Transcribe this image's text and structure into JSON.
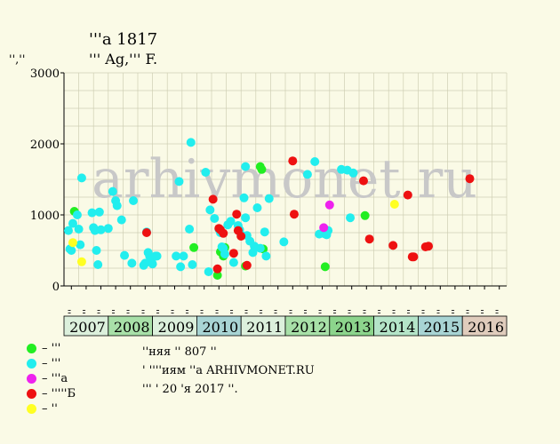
{
  "header": {
    "title": "ꞌꞌꞌa 1817",
    "subtitle": "ꞌꞌꞌ Ag,ꞌꞌꞌ F.",
    "y_unit": "ꞌꞌ,ꞌꞌ"
  },
  "legend": [
    {
      "label": "– ꞌꞌꞌ",
      "color": "#22ee22"
    },
    {
      "label": "– ꞌꞌꞌ",
      "color": "#22eeee"
    },
    {
      "label": "– ꞌꞌꞌa",
      "color": "#ee22ee"
    },
    {
      "label": "– ꞌꞌꞌꞌꞌБ",
      "color": "#ee1111"
    },
    {
      "label": "– ꞌꞌ",
      "color": "#ffff22"
    }
  ],
  "notes": [
    "ꞌꞌняя ꞌꞌ 807 ꞌꞌ",
    "ꞌ ꞌꞌꞌꞌиям ꞌꞌa ARHIVMONET.RU",
    "ꞌꞌꞌ ꞌ 20 ꞌя 2017 ꞌꞌ."
  ],
  "watermark": "arhivmonet.ru",
  "chart_data": {
    "type": "scatter",
    "ylim": [
      0,
      3000
    ],
    "y_ticks": [
      0,
      1000,
      2000,
      3000
    ],
    "x_tick_labels": [
      "ꞌꞌ",
      "ꞌꞌ",
      "ꞌꞌ",
      "ꞌꞌ",
      "ꞌꞌ",
      "ꞌꞌ",
      "ꞌꞌ",
      "ꞌꞌ",
      "ꞌꞌ",
      "ꞌꞌ",
      "ꞌꞌ",
      "ꞌꞌ",
      "ꞌꞌ",
      "ꞌꞌ",
      "ꞌꞌ",
      "ꞌꞌ",
      "ꞌꞌ",
      "ꞌꞌ",
      "ꞌꞌ",
      "ꞌꞌ",
      "ꞌꞌ",
      "ꞌꞌ",
      "ꞌꞌ",
      "ꞌꞌ",
      "ꞌꞌ",
      "ꞌꞌ",
      "ꞌꞌ",
      "ꞌꞌ",
      "ꞌꞌ",
      "ꞌꞌ"
    ],
    "years": [
      {
        "label": "2007",
        "color": "#dcf0dc"
      },
      {
        "label": "2008",
        "color": "#a8e0a8"
      },
      {
        "label": "2009",
        "color": "#dcf0dc"
      },
      {
        "label": "2010",
        "color": "#a8d4d4"
      },
      {
        "label": "2011",
        "color": "#dcf0dc"
      },
      {
        "label": "2012",
        "color": "#a8e0a8"
      },
      {
        "label": "2013",
        "color": "#8cd48c"
      },
      {
        "label": "2014",
        "color": "#b4e4c8"
      },
      {
        "label": "2015",
        "color": "#a8d4d4"
      },
      {
        "label": "2016",
        "color": "#e0ccbc"
      }
    ],
    "series": [
      {
        "color": "#22ee22",
        "points": [
          [
            0.7,
            1050
          ],
          [
            8.8,
            540
          ],
          [
            10.4,
            150
          ],
          [
            10.6,
            480
          ],
          [
            10.8,
            420
          ],
          [
            10.9,
            540
          ],
          [
            12.3,
            280
          ],
          [
            13.3,
            1680
          ],
          [
            13.4,
            1640
          ],
          [
            13.5,
            520
          ],
          [
            17.7,
            270
          ],
          [
            20.4,
            990
          ]
        ]
      },
      {
        "color": "#22eeee",
        "points": [
          [
            0.3,
            780
          ],
          [
            0.4,
            520
          ],
          [
            0.5,
            500
          ],
          [
            0.6,
            880
          ],
          [
            0.9,
            1000
          ],
          [
            1.0,
            800
          ],
          [
            1.1,
            580
          ],
          [
            1.2,
            1520
          ],
          [
            1.9,
            1030
          ],
          [
            2.0,
            820
          ],
          [
            2.1,
            780
          ],
          [
            2.2,
            500
          ],
          [
            2.3,
            300
          ],
          [
            2.4,
            1040
          ],
          [
            2.5,
            790
          ],
          [
            3.0,
            810
          ],
          [
            3.3,
            1330
          ],
          [
            3.5,
            1200
          ],
          [
            3.6,
            1130
          ],
          [
            3.9,
            930
          ],
          [
            4.1,
            430
          ],
          [
            4.6,
            320
          ],
          [
            4.7,
            1200
          ],
          [
            5.4,
            290
          ],
          [
            5.5,
            320
          ],
          [
            5.6,
            760
          ],
          [
            5.7,
            470
          ],
          [
            5.8,
            420
          ],
          [
            5.9,
            350
          ],
          [
            6.0,
            310
          ],
          [
            6.2,
            420
          ],
          [
            6.3,
            420
          ],
          [
            7.6,
            420
          ],
          [
            7.8,
            1470
          ],
          [
            7.9,
            270
          ],
          [
            8.1,
            420
          ],
          [
            8.5,
            800
          ],
          [
            8.7,
            300
          ],
          [
            8.6,
            2020
          ],
          [
            9.6,
            1600
          ],
          [
            9.8,
            200
          ],
          [
            9.9,
            1070
          ],
          [
            10.2,
            950
          ],
          [
            10.5,
            800
          ],
          [
            10.6,
            750
          ],
          [
            10.7,
            550
          ],
          [
            10.8,
            530
          ],
          [
            10.9,
            450
          ],
          [
            11.1,
            860
          ],
          [
            11.3,
            910
          ],
          [
            11.5,
            330
          ],
          [
            11.8,
            850
          ],
          [
            11.9,
            790
          ],
          [
            12.0,
            720
          ],
          [
            12.2,
            1240
          ],
          [
            12.3,
            1680
          ],
          [
            12.3,
            960
          ],
          [
            12.4,
            710
          ],
          [
            12.6,
            630
          ],
          [
            12.8,
            470
          ],
          [
            12.9,
            560
          ],
          [
            13.1,
            1100
          ],
          [
            13.3,
            530
          ],
          [
            13.6,
            760
          ],
          [
            13.7,
            420
          ],
          [
            13.9,
            1230
          ],
          [
            14.9,
            620
          ],
          [
            16.5,
            1570
          ],
          [
            17.0,
            1750
          ],
          [
            17.3,
            730
          ],
          [
            17.7,
            730
          ],
          [
            17.8,
            720
          ],
          [
            17.9,
            780
          ],
          [
            18.8,
            1640
          ],
          [
            19.2,
            1630
          ],
          [
            19.4,
            960
          ],
          [
            19.6,
            1590
          ]
        ]
      },
      {
        "color": "#ee22ee",
        "points": [
          [
            17.6,
            820
          ],
          [
            18.0,
            1140
          ]
        ]
      },
      {
        "color": "#ee1111",
        "points": [
          [
            5.6,
            750
          ],
          [
            10.1,
            1220
          ],
          [
            10.4,
            240
          ],
          [
            10.5,
            810
          ],
          [
            10.6,
            790
          ],
          [
            10.8,
            740
          ],
          [
            11.5,
            460
          ],
          [
            11.7,
            1010
          ],
          [
            11.8,
            780
          ],
          [
            12.0,
            700
          ],
          [
            12.4,
            290
          ],
          [
            15.5,
            1760
          ],
          [
            15.6,
            1010
          ],
          [
            20.3,
            1480
          ],
          [
            20.7,
            660
          ],
          [
            22.3,
            570
          ],
          [
            23.3,
            1280
          ],
          [
            23.6,
            410
          ],
          [
            23.7,
            410
          ],
          [
            24.5,
            550
          ],
          [
            24.7,
            560
          ],
          [
            27.5,
            1510
          ]
        ]
      },
      {
        "color": "#ffff22",
        "points": [
          [
            0.6,
            610
          ],
          [
            1.2,
            340
          ],
          [
            22.4,
            1150
          ]
        ]
      }
    ]
  }
}
